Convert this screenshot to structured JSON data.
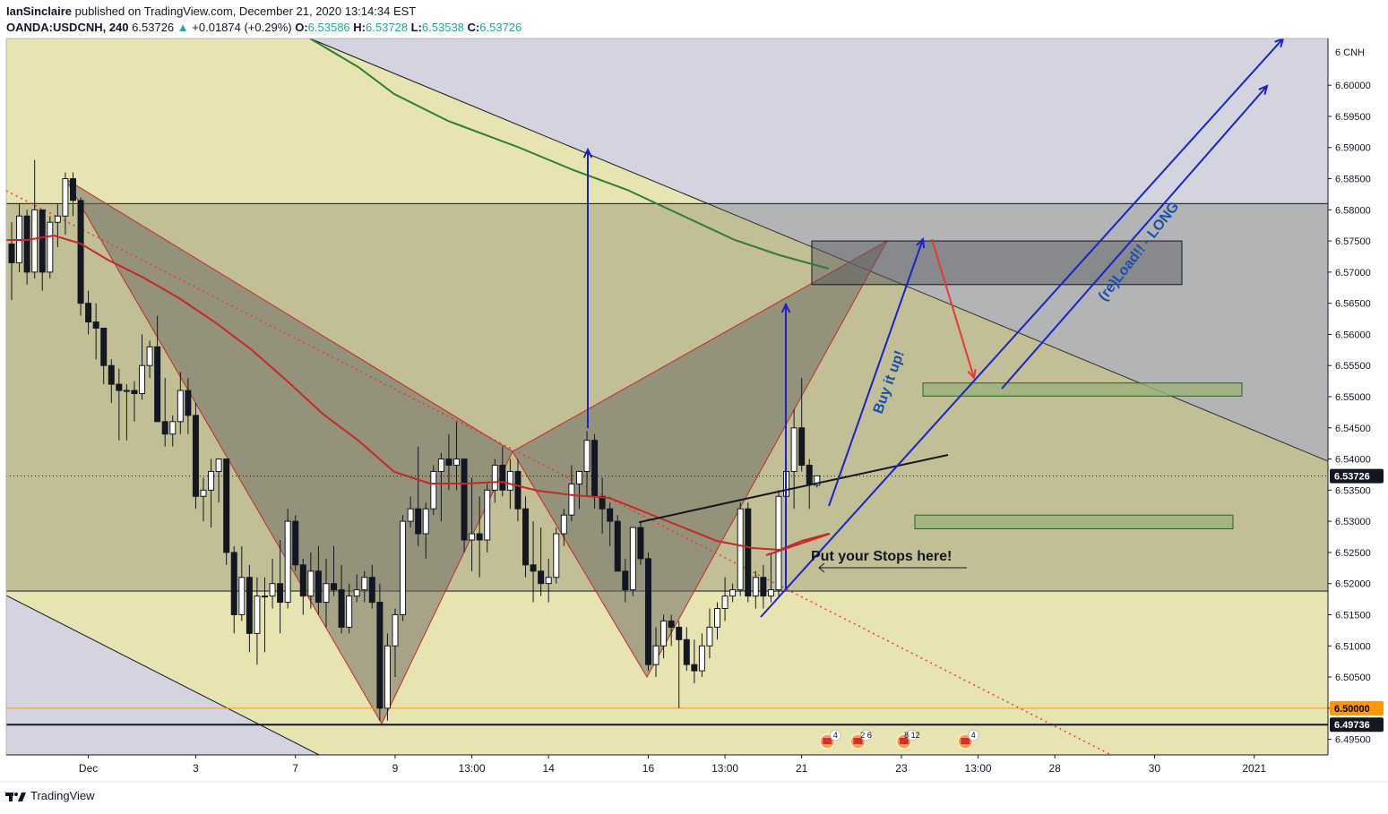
{
  "header": {
    "author": "IanSinclaire",
    "published_text": "published on TradingView.com, December 21, 2020 13:14:34 EST",
    "symbol": "OANDA:USDCNH, 240",
    "last": "6.53726",
    "change_arrow": "▲",
    "change": "+0.01874 (+0.29%)",
    "o_label": "O:",
    "o": "6.53586",
    "h_label": "H:",
    "h": "6.53728",
    "l_label": "L:",
    "l": "6.53538",
    "c_label": "C:",
    "c": "6.53726"
  },
  "footer": {
    "brand": "TradingView"
  },
  "chart_data": {
    "type": "candlestick",
    "symbol": "OANDA:USDCNH",
    "timeframe": "240",
    "currency_label": "6 CNH",
    "y_range": [
      6.4925,
      6.6075
    ],
    "price_ticks": [
      "6.60000",
      "6.59500",
      "6.59000",
      "6.58500",
      "6.58000",
      "6.57500",
      "6.57000",
      "6.56500",
      "6.56000",
      "6.55500",
      "6.55000",
      "6.54500",
      "6.54000",
      "6.53500",
      "6.53000",
      "6.52500",
      "6.52000",
      "6.51500",
      "6.51000",
      "6.50500",
      "6.50000",
      "6.49500"
    ],
    "x_labels": [
      {
        "label": "Dec",
        "bar": 10
      },
      {
        "label": "3",
        "bar": 24
      },
      {
        "label": "7",
        "bar": 37
      },
      {
        "label": "9",
        "bar": 50
      },
      {
        "label": "13:00",
        "bar": 60
      },
      {
        "label": "14",
        "bar": 70
      },
      {
        "label": "16",
        "bar": 83
      },
      {
        "label": "13:00",
        "bar": 93
      },
      {
        "label": "21",
        "bar": 103
      },
      {
        "label": "23",
        "bar": 116
      },
      {
        "label": "13:00",
        "bar": 126
      },
      {
        "label": "28",
        "bar": 136
      },
      {
        "label": "30",
        "bar": 149
      },
      {
        "label": "2021",
        "bar": 162
      }
    ],
    "price_badges": [
      {
        "label": "6.53726",
        "value": 6.53726,
        "bg": "#131722",
        "fg": "#ffffff"
      },
      {
        "label": "6.50000",
        "value": 6.5,
        "bg": "#ff9800",
        "fg": "#000000"
      },
      {
        "label": "6.49736",
        "value": 6.49736,
        "bg": "#131722",
        "fg": "#ffffff"
      }
    ],
    "candles": [
      [
        6.5745,
        6.578,
        6.5655,
        6.5715
      ],
      [
        6.5715,
        6.581,
        6.57,
        6.579
      ],
      [
        6.579,
        6.58,
        6.568,
        6.57
      ],
      [
        6.57,
        6.588,
        6.569,
        6.58
      ],
      [
        6.58,
        6.579,
        6.567,
        6.57
      ],
      [
        6.57,
        6.579,
        6.569,
        6.578
      ],
      [
        6.578,
        6.581,
        6.574,
        6.579
      ],
      [
        6.579,
        6.586,
        6.576,
        6.585
      ],
      [
        6.585,
        6.586,
        6.579,
        6.5815
      ],
      [
        6.5815,
        6.582,
        6.563,
        6.565
      ],
      [
        6.565,
        6.567,
        6.56,
        6.562
      ],
      [
        6.562,
        6.565,
        6.556,
        6.561
      ],
      [
        6.561,
        6.561,
        6.552,
        6.555
      ],
      [
        6.555,
        6.556,
        6.549,
        6.552
      ],
      [
        6.552,
        6.5545,
        6.543,
        6.551
      ],
      [
        6.551,
        6.552,
        6.543,
        6.551
      ],
      [
        6.551,
        6.5525,
        6.546,
        6.5505
      ],
      [
        6.5505,
        6.56,
        6.5495,
        6.555
      ],
      [
        6.555,
        6.559,
        6.553,
        6.558
      ],
      [
        6.558,
        6.563,
        6.546,
        6.546
      ],
      [
        6.546,
        6.553,
        6.542,
        6.544
      ],
      [
        6.544,
        6.547,
        6.542,
        6.546
      ],
      [
        6.546,
        6.554,
        6.544,
        6.551
      ],
      [
        6.551,
        6.553,
        6.544,
        6.547
      ],
      [
        6.547,
        6.549,
        6.532,
        6.534
      ],
      [
        6.534,
        6.537,
        6.53,
        6.535
      ],
      [
        6.535,
        6.54,
        6.529,
        6.538
      ],
      [
        6.538,
        6.54,
        6.533,
        6.54
      ],
      [
        6.54,
        6.54,
        6.523,
        6.525
      ],
      [
        6.525,
        6.526,
        6.512,
        6.515
      ],
      [
        6.515,
        6.526,
        6.514,
        6.521
      ],
      [
        6.521,
        6.523,
        6.509,
        6.512
      ],
      [
        6.512,
        6.521,
        6.507,
        6.518
      ],
      [
        6.518,
        6.521,
        6.509,
        6.518
      ],
      [
        6.518,
        6.524,
        6.516,
        6.52
      ],
      [
        6.52,
        6.527,
        6.512,
        6.517
      ],
      [
        6.517,
        6.532,
        6.516,
        6.53
      ],
      [
        6.53,
        6.531,
        6.522,
        6.523
      ],
      [
        6.523,
        6.524,
        6.515,
        6.518
      ],
      [
        6.518,
        6.525,
        6.516,
        6.522
      ],
      [
        6.522,
        6.526,
        6.515,
        6.517
      ],
      [
        6.517,
        6.524,
        6.513,
        6.52
      ],
      [
        6.52,
        6.526,
        6.518,
        6.519
      ],
      [
        6.519,
        6.523,
        6.512,
        6.513
      ],
      [
        6.513,
        6.52,
        6.512,
        6.518
      ],
      [
        6.518,
        6.5215,
        6.517,
        6.519
      ],
      [
        6.519,
        6.522,
        6.517,
        6.521
      ],
      [
        6.521,
        6.523,
        6.516,
        6.517
      ],
      [
        6.517,
        6.52,
        6.498,
        6.5
      ],
      [
        6.5,
        6.512,
        6.498,
        6.51
      ],
      [
        6.51,
        6.516,
        6.505,
        6.515
      ],
      [
        6.515,
        6.531,
        6.514,
        6.53
      ],
      [
        6.53,
        6.534,
        6.529,
        6.532
      ],
      [
        6.532,
        6.542,
        6.526,
        6.528
      ],
      [
        6.528,
        6.533,
        6.524,
        6.532
      ],
      [
        6.532,
        6.539,
        6.531,
        6.538
      ],
      [
        6.538,
        6.541,
        6.53,
        6.54
      ],
      [
        6.54,
        6.544,
        6.535,
        6.539
      ],
      [
        6.539,
        6.546,
        6.535,
        6.54
      ],
      [
        6.54,
        6.54,
        6.525,
        6.527
      ],
      [
        6.527,
        6.537,
        6.522,
        6.528
      ],
      [
        6.528,
        6.534,
        6.521,
        6.527
      ],
      [
        6.527,
        6.536,
        6.525,
        6.535
      ],
      [
        6.535,
        6.54,
        6.533,
        6.539
      ],
      [
        6.539,
        6.542,
        6.534,
        6.535
      ],
      [
        6.535,
        6.54,
        6.532,
        6.538
      ],
      [
        6.538,
        6.54,
        6.53,
        6.532
      ],
      [
        6.532,
        6.534,
        6.521,
        6.523
      ],
      [
        6.523,
        6.53,
        6.517,
        6.522
      ],
      [
        6.522,
        6.529,
        6.518,
        6.52
      ],
      [
        6.52,
        6.524,
        6.517,
        6.521
      ],
      [
        6.521,
        6.529,
        6.52,
        6.528
      ],
      [
        6.528,
        6.532,
        6.526,
        6.531
      ],
      [
        6.531,
        6.539,
        6.53,
        6.536
      ],
      [
        6.536,
        6.538,
        6.532,
        6.538
      ],
      [
        6.538,
        6.5445,
        6.534,
        6.543
      ],
      [
        6.543,
        6.544,
        6.532,
        6.534
      ],
      [
        6.534,
        6.537,
        6.528,
        6.532
      ],
      [
        6.532,
        6.533,
        6.526,
        6.53
      ],
      [
        6.53,
        6.531,
        6.522,
        6.522
      ],
      [
        6.522,
        6.524,
        6.517,
        6.519
      ],
      [
        6.519,
        6.529,
        6.518,
        6.529
      ],
      [
        6.529,
        6.53,
        6.523,
        6.524
      ],
      [
        6.524,
        6.525,
        6.506,
        6.507
      ],
      [
        6.507,
        6.513,
        6.505,
        6.51
      ],
      [
        6.51,
        6.515,
        6.508,
        6.514
      ],
      [
        6.514,
        6.515,
        6.51,
        6.513
      ],
      [
        6.513,
        6.514,
        6.5,
        6.511
      ],
      [
        6.511,
        6.513,
        6.506,
        6.507
      ],
      [
        6.507,
        6.511,
        6.504,
        6.506
      ],
      [
        6.506,
        6.512,
        6.505,
        6.51
      ],
      [
        6.51,
        6.516,
        6.508,
        6.513
      ],
      [
        6.513,
        6.517,
        6.511,
        6.516
      ],
      [
        6.516,
        6.521,
        6.514,
        6.518
      ],
      [
        6.518,
        6.52,
        6.517,
        6.519
      ],
      [
        6.519,
        6.533,
        6.518,
        6.532
      ],
      [
        6.532,
        6.533,
        6.517,
        6.518
      ],
      [
        6.518,
        6.522,
        6.516,
        6.521
      ],
      [
        6.521,
        6.523,
        6.516,
        6.518
      ],
      [
        6.518,
        6.525,
        6.517,
        6.519
      ],
      [
        6.519,
        6.535,
        6.518,
        6.534
      ],
      [
        6.534,
        6.54,
        6.533,
        6.538
      ],
      [
        6.538,
        6.548,
        6.532,
        6.545
      ],
      [
        6.545,
        6.553,
        6.538,
        6.539
      ],
      [
        6.539,
        6.54,
        6.532,
        6.536
      ],
      [
        6.5358,
        6.5373,
        6.5354,
        6.5373
      ]
    ],
    "zones": [
      {
        "from": [
          0,
          6.6075
        ],
        "to": [
          170,
          6.4925
        ],
        "color": "#e8e4b2",
        "label": ""
      },
      {
        "y1": 6.581,
        "y2": 6.5188,
        "color": "#a9a789"
      }
    ],
    "annotations": {
      "stops_text": "Put your Stops here!",
      "buy_text": "Buy it up!",
      "reload_text": "(re)Load!! - LONG"
    },
    "events": [
      {
        "bar": 104,
        "label": "4"
      },
      {
        "bar": 108,
        "label": "2 6"
      },
      {
        "bar": 114,
        "label": "8 12"
      },
      {
        "bar": 122,
        "label": "4"
      }
    ],
    "colors": {
      "up": "#ffffff",
      "down": "#131722",
      "ma_fast": "#c62828",
      "ma_slow": "#2e7d32",
      "blue": "#1a23c9",
      "accent_red": "#e53935"
    }
  }
}
